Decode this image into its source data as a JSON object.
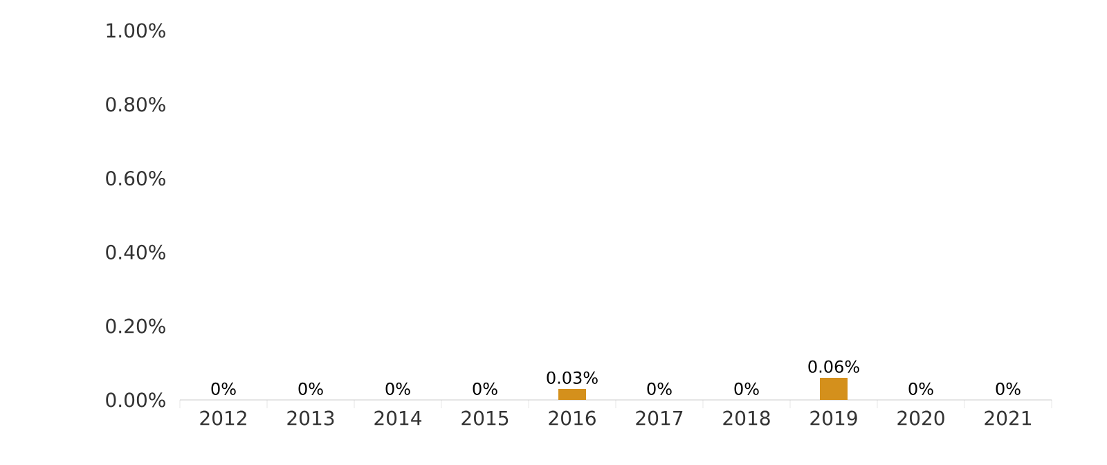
{
  "chart_data": {
    "type": "bar",
    "categories": [
      "2012",
      "2013",
      "2014",
      "2015",
      "2016",
      "2017",
      "2018",
      "2019",
      "2020",
      "2021"
    ],
    "values": [
      0,
      0,
      0,
      0,
      0.03,
      0,
      0,
      0.06,
      0,
      0
    ],
    "value_labels": [
      "0%",
      "0%",
      "0%",
      "0%",
      "0.03%",
      "0%",
      "0%",
      "0.06%",
      "0%",
      "0%"
    ],
    "color": "#d4901c",
    "ylim": [
      0,
      1
    ],
    "yticks": [
      {
        "value": 0,
        "label": "0.00%"
      },
      {
        "value": 0.2,
        "label": "0.20%"
      },
      {
        "value": 0.4,
        "label": "0.40%"
      },
      {
        "value": 0.6,
        "label": "0.60%"
      },
      {
        "value": 0.8,
        "label": "0.80%"
      },
      {
        "value": 1,
        "label": "1.00%"
      }
    ],
    "grid": false
  }
}
